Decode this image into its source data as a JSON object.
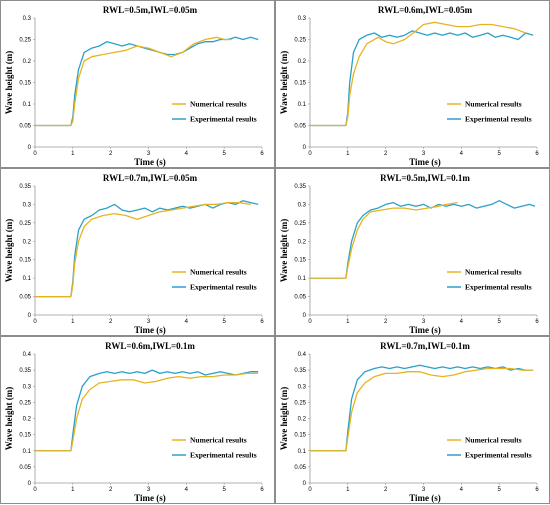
{
  "colors": {
    "numerical": "#e6b422",
    "experimental": "#2aa0c9",
    "border": "#8c8c8c"
  },
  "chart_data": [
    {
      "type": "line",
      "title": "RWL=0.5m,IWL=0.05m",
      "xlabel": "Time (s)",
      "ylabel": "Wave height (m)",
      "xlim": [
        0,
        6
      ],
      "ylim": [
        0,
        0.3
      ],
      "xticks": [
        "0",
        "1",
        "2",
        "3",
        "4",
        "5",
        "6"
      ],
      "yticks": [
        "0",
        "0.05",
        "0.1",
        "0.15",
        "0.2",
        "0.25",
        "0.3"
      ],
      "legend_position": "lower-right",
      "series": [
        {
          "name": "Numerical results",
          "color": "numerical",
          "x": [
            0,
            0.95,
            1.0,
            1.05,
            1.15,
            1.3,
            1.5,
            1.8,
            2.1,
            2.4,
            2.7,
            3.0,
            3.3,
            3.6,
            3.9,
            4.2,
            4.5,
            4.8,
            5.0,
            5.2
          ],
          "y": [
            0.05,
            0.05,
            0.06,
            0.1,
            0.16,
            0.2,
            0.21,
            0.215,
            0.22,
            0.225,
            0.235,
            0.23,
            0.22,
            0.21,
            0.22,
            0.24,
            0.25,
            0.255,
            0.25,
            0.25
          ]
        },
        {
          "name": "Experimental results",
          "color": "experimental",
          "x": [
            0,
            0.95,
            1.0,
            1.05,
            1.15,
            1.3,
            1.5,
            1.7,
            1.9,
            2.1,
            2.3,
            2.5,
            2.7,
            2.9,
            3.1,
            3.3,
            3.5,
            3.7,
            3.9,
            4.1,
            4.3,
            4.5,
            4.7,
            4.9,
            5.1,
            5.3,
            5.5,
            5.7,
            5.9
          ],
          "y": [
            0.05,
            0.05,
            0.07,
            0.12,
            0.18,
            0.22,
            0.23,
            0.235,
            0.245,
            0.24,
            0.235,
            0.24,
            0.235,
            0.23,
            0.225,
            0.22,
            0.215,
            0.215,
            0.22,
            0.23,
            0.24,
            0.245,
            0.245,
            0.25,
            0.25,
            0.255,
            0.25,
            0.255,
            0.25
          ]
        }
      ]
    },
    {
      "type": "line",
      "title": "RWL=0.6m,IWL=0.05m",
      "xlabel": "Time (s)",
      "ylabel": "Wave height (m)",
      "xlim": [
        0,
        6
      ],
      "ylim": [
        0,
        0.3
      ],
      "xticks": [
        "0",
        "1",
        "2",
        "3",
        "4",
        "5",
        "6"
      ],
      "yticks": [
        "0",
        "0.05",
        "0.1",
        "0.15",
        "0.2",
        "0.25",
        "0.3"
      ],
      "legend_position": "lower-right",
      "series": [
        {
          "name": "Numerical results",
          "color": "numerical",
          "x": [
            0,
            0.95,
            1.0,
            1.05,
            1.15,
            1.3,
            1.5,
            1.8,
            2.0,
            2.2,
            2.5,
            2.8,
            3.0,
            3.3,
            3.6,
            3.9,
            4.2,
            4.5,
            4.8,
            5.1,
            5.4,
            5.7
          ],
          "y": [
            0.05,
            0.05,
            0.07,
            0.12,
            0.17,
            0.21,
            0.24,
            0.255,
            0.245,
            0.24,
            0.25,
            0.27,
            0.285,
            0.29,
            0.285,
            0.28,
            0.28,
            0.285,
            0.285,
            0.28,
            0.275,
            0.265
          ]
        },
        {
          "name": "Experimental results",
          "color": "experimental",
          "x": [
            0,
            0.95,
            1.0,
            1.05,
            1.15,
            1.3,
            1.5,
            1.7,
            1.9,
            2.1,
            2.3,
            2.5,
            2.7,
            2.9,
            3.1,
            3.3,
            3.5,
            3.7,
            3.9,
            4.1,
            4.3,
            4.5,
            4.7,
            4.9,
            5.1,
            5.3,
            5.5,
            5.7,
            5.9
          ],
          "y": [
            0.05,
            0.05,
            0.08,
            0.15,
            0.22,
            0.25,
            0.26,
            0.265,
            0.255,
            0.26,
            0.255,
            0.26,
            0.27,
            0.265,
            0.26,
            0.265,
            0.26,
            0.265,
            0.26,
            0.265,
            0.255,
            0.26,
            0.265,
            0.255,
            0.26,
            0.255,
            0.25,
            0.265,
            0.26
          ]
        }
      ]
    },
    {
      "type": "line",
      "title": "RWL=0.7m,IWL=0.05m",
      "xlabel": "Time (s)",
      "ylabel": "Wave height (m)",
      "xlim": [
        0,
        6
      ],
      "ylim": [
        0,
        0.35
      ],
      "xticks": [
        "0",
        "1",
        "2",
        "3",
        "4",
        "5",
        "6"
      ],
      "yticks": [
        "0",
        "0.05",
        "0.1",
        "0.15",
        "0.2",
        "0.25",
        "0.3",
        "0.35"
      ],
      "legend_position": "lower-right",
      "series": [
        {
          "name": "Numerical results",
          "color": "numerical",
          "x": [
            0,
            0.95,
            1.0,
            1.05,
            1.15,
            1.3,
            1.5,
            1.8,
            2.1,
            2.4,
            2.7,
            3.0,
            3.3,
            3.6,
            3.9,
            4.2,
            4.5,
            4.8,
            5.1,
            5.4,
            5.7
          ],
          "y": [
            0.05,
            0.05,
            0.08,
            0.14,
            0.2,
            0.24,
            0.26,
            0.27,
            0.275,
            0.27,
            0.26,
            0.27,
            0.28,
            0.285,
            0.29,
            0.295,
            0.3,
            0.3,
            0.305,
            0.305,
            0.3
          ]
        },
        {
          "name": "Experimental results",
          "color": "experimental",
          "x": [
            0,
            0.95,
            1.0,
            1.05,
            1.15,
            1.3,
            1.5,
            1.7,
            1.9,
            2.1,
            2.3,
            2.5,
            2.7,
            2.9,
            3.1,
            3.3,
            3.5,
            3.7,
            3.9,
            4.1,
            4.3,
            4.5,
            4.7,
            4.9,
            5.1,
            5.3,
            5.5,
            5.7,
            5.9
          ],
          "y": [
            0.05,
            0.05,
            0.09,
            0.16,
            0.23,
            0.26,
            0.27,
            0.285,
            0.29,
            0.3,
            0.285,
            0.28,
            0.285,
            0.29,
            0.28,
            0.29,
            0.285,
            0.29,
            0.295,
            0.29,
            0.295,
            0.3,
            0.29,
            0.3,
            0.305,
            0.3,
            0.31,
            0.305,
            0.3
          ]
        }
      ]
    },
    {
      "type": "line",
      "title": "RWL=0.5m,IWL=0.1m",
      "xlabel": "Time (s)",
      "ylabel": "Wave height (m)",
      "xlim": [
        0,
        6
      ],
      "ylim": [
        0,
        0.35
      ],
      "xticks": [
        "0",
        "1",
        "2",
        "3",
        "4",
        "5",
        "6"
      ],
      "yticks": [
        "0",
        "0.05",
        "0.1",
        "0.15",
        "0.2",
        "0.25",
        "0.3",
        "0.35"
      ],
      "legend_position": "lower-right",
      "series": [
        {
          "name": "Numerical results",
          "color": "numerical",
          "x": [
            0,
            0.95,
            1.0,
            1.1,
            1.25,
            1.4,
            1.6,
            1.9,
            2.2,
            2.5,
            2.8,
            3.1,
            3.4,
            3.6,
            3.9
          ],
          "y": [
            0.1,
            0.1,
            0.13,
            0.18,
            0.23,
            0.26,
            0.28,
            0.285,
            0.29,
            0.29,
            0.285,
            0.29,
            0.295,
            0.3,
            0.305
          ]
        },
        {
          "name": "Experimental results",
          "color": "experimental",
          "x": [
            0,
            0.95,
            1.0,
            1.1,
            1.25,
            1.4,
            1.6,
            1.8,
            2.0,
            2.2,
            2.4,
            2.6,
            2.8,
            3.0,
            3.2,
            3.4,
            3.6,
            3.8,
            4.0,
            4.2,
            4.4,
            4.6,
            4.8,
            5.0,
            5.2,
            5.4,
            5.6,
            5.8,
            5.95
          ],
          "y": [
            0.1,
            0.1,
            0.14,
            0.2,
            0.25,
            0.27,
            0.285,
            0.29,
            0.3,
            0.305,
            0.295,
            0.3,
            0.295,
            0.3,
            0.29,
            0.3,
            0.295,
            0.3,
            0.295,
            0.3,
            0.29,
            0.295,
            0.3,
            0.31,
            0.3,
            0.29,
            0.295,
            0.3,
            0.295
          ]
        }
      ]
    },
    {
      "type": "line",
      "title": "RWL=0.6m,IWL=0.1m",
      "xlabel": "Time (s)",
      "ylabel": "Wave height (m)",
      "xlim": [
        0,
        6
      ],
      "ylim": [
        0,
        0.4
      ],
      "xticks": [
        "0",
        "1",
        "2",
        "3",
        "4",
        "5",
        "6"
      ],
      "yticks": [
        "0",
        "0.05",
        "0.1",
        "0.15",
        "0.2",
        "0.25",
        "0.3",
        "0.35",
        "0.4"
      ],
      "legend_position": "lower-right",
      "series": [
        {
          "name": "Numerical results",
          "color": "numerical",
          "x": [
            0,
            0.95,
            1.0,
            1.1,
            1.25,
            1.45,
            1.7,
            2.0,
            2.3,
            2.6,
            2.9,
            3.2,
            3.5,
            3.8,
            4.1,
            4.4,
            4.7,
            5.0,
            5.3,
            5.6,
            5.9
          ],
          "y": [
            0.1,
            0.1,
            0.13,
            0.2,
            0.26,
            0.29,
            0.31,
            0.315,
            0.32,
            0.32,
            0.31,
            0.315,
            0.325,
            0.33,
            0.325,
            0.33,
            0.33,
            0.335,
            0.335,
            0.34,
            0.34
          ]
        },
        {
          "name": "Experimental results",
          "color": "experimental",
          "x": [
            0,
            0.95,
            1.0,
            1.1,
            1.25,
            1.45,
            1.7,
            1.9,
            2.1,
            2.3,
            2.5,
            2.7,
            2.9,
            3.1,
            3.3,
            3.5,
            3.7,
            3.9,
            4.1,
            4.3,
            4.5,
            4.7,
            4.9,
            5.1,
            5.3,
            5.5,
            5.7,
            5.9
          ],
          "y": [
            0.1,
            0.1,
            0.15,
            0.24,
            0.3,
            0.33,
            0.34,
            0.345,
            0.34,
            0.345,
            0.34,
            0.345,
            0.34,
            0.35,
            0.34,
            0.345,
            0.34,
            0.345,
            0.34,
            0.345,
            0.335,
            0.34,
            0.345,
            0.34,
            0.335,
            0.34,
            0.345,
            0.345
          ]
        }
      ]
    },
    {
      "type": "line",
      "title": "RWL=0.7m,IWL=0.1m",
      "xlabel": "Time (s)",
      "ylabel": "Wave height (m)",
      "xlim": [
        0,
        6
      ],
      "ylim": [
        0,
        0.4
      ],
      "xticks": [
        "0",
        "1",
        "2",
        "3",
        "4",
        "5",
        "6"
      ],
      "yticks": [
        "0",
        "0.05",
        "0.1",
        "0.15",
        "0.2",
        "0.25",
        "0.3",
        "0.35",
        "0.4"
      ],
      "legend_position": "lower-right",
      "series": [
        {
          "name": "Numerical results",
          "color": "numerical",
          "x": [
            0,
            0.95,
            1.0,
            1.1,
            1.25,
            1.45,
            1.7,
            2.0,
            2.3,
            2.6,
            2.9,
            3.2,
            3.5,
            3.8,
            4.1,
            4.4,
            4.7,
            5.0,
            5.3,
            5.6,
            5.9
          ],
          "y": [
            0.1,
            0.1,
            0.14,
            0.22,
            0.28,
            0.31,
            0.33,
            0.34,
            0.34,
            0.345,
            0.345,
            0.335,
            0.33,
            0.335,
            0.345,
            0.35,
            0.355,
            0.355,
            0.355,
            0.35,
            0.35
          ]
        },
        {
          "name": "Experimental results",
          "color": "experimental",
          "x": [
            0,
            0.95,
            1.0,
            1.1,
            1.25,
            1.45,
            1.7,
            1.9,
            2.1,
            2.3,
            2.5,
            2.7,
            2.9,
            3.1,
            3.3,
            3.5,
            3.7,
            3.9,
            4.1,
            4.3,
            4.5,
            4.7,
            4.9,
            5.1,
            5.3,
            5.5,
            5.7,
            5.9
          ],
          "y": [
            0.1,
            0.1,
            0.16,
            0.26,
            0.32,
            0.345,
            0.355,
            0.36,
            0.355,
            0.36,
            0.355,
            0.36,
            0.365,
            0.36,
            0.355,
            0.36,
            0.355,
            0.36,
            0.355,
            0.36,
            0.355,
            0.36,
            0.355,
            0.36,
            0.35,
            0.355,
            0.35,
            0.35
          ]
        }
      ]
    }
  ]
}
